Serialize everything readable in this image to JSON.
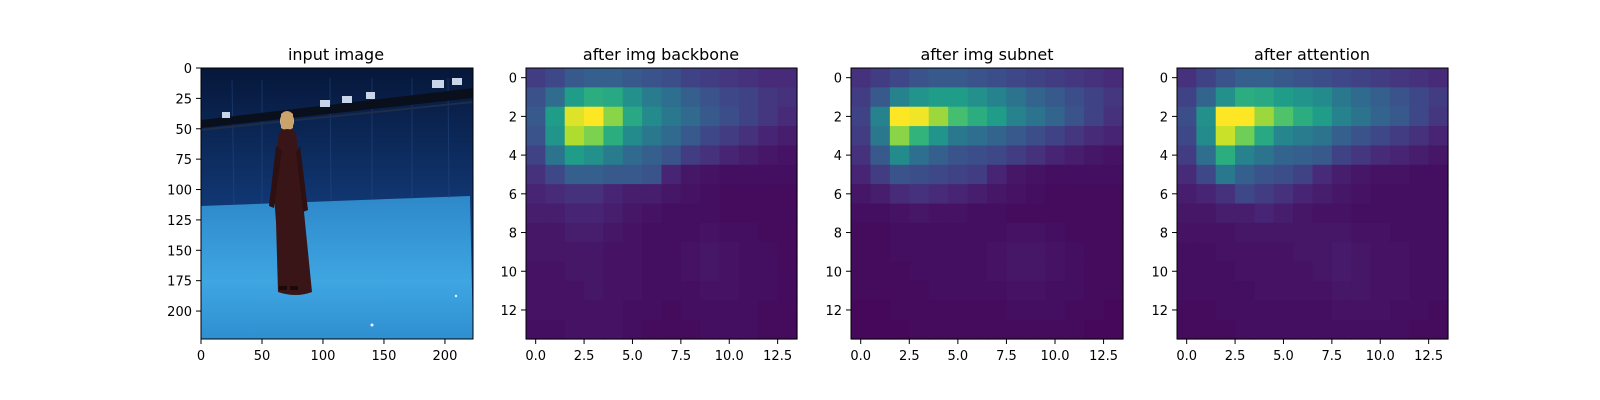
{
  "figure": {
    "panels": [
      {
        "title": "input image"
      },
      {
        "title": "after img backbone"
      },
      {
        "title": "after img subnet"
      },
      {
        "title": "after attention"
      }
    ]
  },
  "colors": {
    "viridis": [
      "#440154",
      "#482878",
      "#3e4989",
      "#31688e",
      "#26828e",
      "#1f9e89",
      "#35b779",
      "#6ece58",
      "#b5de2b",
      "#fde725"
    ],
    "photo_wall": "#0d2b5c",
    "photo_floor": "#3aa0d8",
    "photo_dress": "#3a1518"
  },
  "chart_data": [
    {
      "type": "image",
      "title": "input image",
      "xlim": [
        0,
        223
      ],
      "ylim": [
        223,
        0
      ],
      "xticks": [
        0,
        50,
        100,
        150,
        200
      ],
      "yticks": [
        0,
        25,
        50,
        75,
        100,
        125,
        150,
        175,
        200
      ]
    },
    {
      "type": "heatmap",
      "title": "after img backbone",
      "xlim": [
        -0.5,
        13.5
      ],
      "ylim": [
        13.5,
        -0.5
      ],
      "xticks": [
        "0.0",
        "2.5",
        "5.0",
        "7.5",
        "10.0",
        "12.5"
      ],
      "yticks": [
        0,
        2,
        4,
        6,
        8,
        10,
        12
      ],
      "z": [
        [
          0.18,
          0.22,
          0.28,
          0.3,
          0.3,
          0.28,
          0.26,
          0.24,
          0.2,
          0.18,
          0.16,
          0.14,
          0.12,
          0.12
        ],
        [
          0.25,
          0.35,
          0.55,
          0.62,
          0.6,
          0.5,
          0.42,
          0.36,
          0.3,
          0.26,
          0.22,
          0.2,
          0.16,
          0.14
        ],
        [
          0.28,
          0.55,
          0.95,
          1.0,
          0.82,
          0.6,
          0.48,
          0.4,
          0.34,
          0.28,
          0.24,
          0.2,
          0.16,
          0.12
        ],
        [
          0.26,
          0.52,
          0.88,
          0.8,
          0.62,
          0.48,
          0.4,
          0.34,
          0.28,
          0.22,
          0.18,
          0.14,
          0.1,
          0.08
        ],
        [
          0.2,
          0.38,
          0.55,
          0.5,
          0.42,
          0.34,
          0.3,
          0.26,
          0.18,
          0.14,
          0.1,
          0.08,
          0.06,
          0.05
        ],
        [
          0.14,
          0.22,
          0.3,
          0.3,
          0.28,
          0.28,
          0.26,
          0.1,
          0.06,
          0.05,
          0.04,
          0.04,
          0.04,
          0.04
        ],
        [
          0.1,
          0.12,
          0.14,
          0.14,
          0.1,
          0.08,
          0.08,
          0.06,
          0.05,
          0.04,
          0.03,
          0.03,
          0.03,
          0.03
        ],
        [
          0.08,
          0.08,
          0.1,
          0.1,
          0.08,
          0.06,
          0.05,
          0.04,
          0.04,
          0.04,
          0.03,
          0.03,
          0.03,
          0.03
        ],
        [
          0.06,
          0.06,
          0.08,
          0.08,
          0.06,
          0.05,
          0.04,
          0.04,
          0.04,
          0.05,
          0.04,
          0.04,
          0.03,
          0.03
        ],
        [
          0.06,
          0.06,
          0.06,
          0.06,
          0.05,
          0.05,
          0.04,
          0.04,
          0.05,
          0.06,
          0.05,
          0.04,
          0.04,
          0.03
        ],
        [
          0.05,
          0.05,
          0.06,
          0.06,
          0.05,
          0.05,
          0.04,
          0.04,
          0.05,
          0.06,
          0.05,
          0.04,
          0.04,
          0.03
        ],
        [
          0.05,
          0.05,
          0.05,
          0.06,
          0.05,
          0.05,
          0.04,
          0.04,
          0.04,
          0.05,
          0.05,
          0.04,
          0.04,
          0.03
        ],
        [
          0.05,
          0.05,
          0.05,
          0.05,
          0.05,
          0.04,
          0.04,
          0.03,
          0.04,
          0.04,
          0.04,
          0.04,
          0.03,
          0.03
        ],
        [
          0.04,
          0.04,
          0.05,
          0.05,
          0.05,
          0.04,
          0.03,
          0.03,
          0.03,
          0.04,
          0.04,
          0.04,
          0.03,
          0.03
        ]
      ]
    },
    {
      "type": "heatmap",
      "title": "after img subnet",
      "xlim": [
        -0.5,
        13.5
      ],
      "ylim": [
        13.5,
        -0.5
      ],
      "xticks": [
        "0.0",
        "2.5",
        "5.0",
        "7.5",
        "10.0",
        "12.5"
      ],
      "yticks": [
        0,
        2,
        4,
        6,
        8,
        10,
        12
      ],
      "z": [
        [
          0.14,
          0.18,
          0.22,
          0.26,
          0.28,
          0.28,
          0.26,
          0.24,
          0.22,
          0.2,
          0.18,
          0.16,
          0.14,
          0.12
        ],
        [
          0.18,
          0.28,
          0.45,
          0.52,
          0.55,
          0.55,
          0.5,
          0.45,
          0.38,
          0.32,
          0.28,
          0.24,
          0.2,
          0.16
        ],
        [
          0.2,
          0.45,
          1.0,
          0.98,
          0.85,
          0.7,
          0.62,
          0.55,
          0.45,
          0.38,
          0.32,
          0.26,
          0.2,
          0.14
        ],
        [
          0.18,
          0.4,
          0.82,
          0.65,
          0.52,
          0.4,
          0.36,
          0.32,
          0.28,
          0.24,
          0.2,
          0.16,
          0.12,
          0.1
        ],
        [
          0.14,
          0.28,
          0.48,
          0.36,
          0.3,
          0.26,
          0.24,
          0.22,
          0.18,
          0.14,
          0.1,
          0.08,
          0.06,
          0.05
        ],
        [
          0.1,
          0.18,
          0.26,
          0.24,
          0.22,
          0.2,
          0.18,
          0.1,
          0.06,
          0.05,
          0.04,
          0.04,
          0.04,
          0.04
        ],
        [
          0.06,
          0.08,
          0.12,
          0.14,
          0.12,
          0.1,
          0.08,
          0.06,
          0.05,
          0.04,
          0.03,
          0.03,
          0.03,
          0.03
        ],
        [
          0.04,
          0.04,
          0.05,
          0.06,
          0.05,
          0.05,
          0.04,
          0.04,
          0.03,
          0.03,
          0.03,
          0.03,
          0.03,
          0.03
        ],
        [
          0.03,
          0.03,
          0.04,
          0.04,
          0.04,
          0.04,
          0.04,
          0.04,
          0.05,
          0.05,
          0.04,
          0.03,
          0.03,
          0.03
        ],
        [
          0.03,
          0.03,
          0.04,
          0.04,
          0.04,
          0.04,
          0.04,
          0.05,
          0.06,
          0.06,
          0.05,
          0.04,
          0.03,
          0.03
        ],
        [
          0.03,
          0.03,
          0.03,
          0.04,
          0.04,
          0.04,
          0.04,
          0.05,
          0.06,
          0.06,
          0.05,
          0.04,
          0.03,
          0.03
        ],
        [
          0.03,
          0.03,
          0.03,
          0.03,
          0.04,
          0.04,
          0.04,
          0.04,
          0.05,
          0.05,
          0.04,
          0.04,
          0.03,
          0.03
        ],
        [
          0.02,
          0.02,
          0.03,
          0.03,
          0.03,
          0.03,
          0.03,
          0.03,
          0.04,
          0.04,
          0.04,
          0.03,
          0.03,
          0.02
        ],
        [
          0.02,
          0.02,
          0.02,
          0.03,
          0.03,
          0.03,
          0.03,
          0.03,
          0.03,
          0.03,
          0.03,
          0.03,
          0.02,
          0.02
        ]
      ]
    },
    {
      "type": "heatmap",
      "title": "after attention",
      "xlim": [
        -0.5,
        13.5
      ],
      "ylim": [
        13.5,
        -0.5
      ],
      "xticks": [
        "0.0",
        "2.5",
        "5.0",
        "7.5",
        "10.0",
        "12.5"
      ],
      "yticks": [
        0,
        2,
        4,
        6,
        8,
        10,
        12
      ],
      "z": [
        [
          0.14,
          0.2,
          0.26,
          0.3,
          0.3,
          0.28,
          0.26,
          0.24,
          0.22,
          0.2,
          0.18,
          0.16,
          0.14,
          0.12
        ],
        [
          0.2,
          0.32,
          0.5,
          0.62,
          0.6,
          0.55,
          0.52,
          0.48,
          0.4,
          0.34,
          0.3,
          0.26,
          0.22,
          0.18
        ],
        [
          0.24,
          0.5,
          1.0,
          1.0,
          0.85,
          0.72,
          0.62,
          0.55,
          0.45,
          0.38,
          0.32,
          0.28,
          0.22,
          0.16
        ],
        [
          0.22,
          0.48,
          0.92,
          0.78,
          0.6,
          0.46,
          0.42,
          0.38,
          0.3,
          0.26,
          0.22,
          0.18,
          0.14,
          0.1
        ],
        [
          0.18,
          0.36,
          0.62,
          0.45,
          0.38,
          0.32,
          0.3,
          0.28,
          0.2,
          0.16,
          0.12,
          0.1,
          0.08,
          0.06
        ],
        [
          0.12,
          0.22,
          0.4,
          0.3,
          0.26,
          0.24,
          0.2,
          0.12,
          0.08,
          0.06,
          0.05,
          0.05,
          0.04,
          0.04
        ],
        [
          0.08,
          0.1,
          0.14,
          0.22,
          0.18,
          0.14,
          0.1,
          0.08,
          0.06,
          0.05,
          0.04,
          0.04,
          0.04,
          0.04
        ],
        [
          0.06,
          0.06,
          0.08,
          0.08,
          0.1,
          0.08,
          0.06,
          0.05,
          0.05,
          0.04,
          0.04,
          0.04,
          0.04,
          0.04
        ],
        [
          0.05,
          0.05,
          0.05,
          0.06,
          0.06,
          0.06,
          0.06,
          0.06,
          0.06,
          0.05,
          0.05,
          0.04,
          0.04,
          0.04
        ],
        [
          0.04,
          0.04,
          0.05,
          0.05,
          0.05,
          0.05,
          0.06,
          0.06,
          0.07,
          0.06,
          0.05,
          0.05,
          0.04,
          0.04
        ],
        [
          0.04,
          0.04,
          0.04,
          0.05,
          0.05,
          0.05,
          0.05,
          0.06,
          0.07,
          0.06,
          0.05,
          0.05,
          0.04,
          0.04
        ],
        [
          0.04,
          0.04,
          0.04,
          0.04,
          0.05,
          0.05,
          0.05,
          0.05,
          0.06,
          0.06,
          0.05,
          0.05,
          0.04,
          0.04
        ],
        [
          0.03,
          0.03,
          0.04,
          0.04,
          0.04,
          0.04,
          0.04,
          0.04,
          0.05,
          0.05,
          0.05,
          0.04,
          0.04,
          0.03
        ],
        [
          0.03,
          0.03,
          0.03,
          0.04,
          0.04,
          0.04,
          0.04,
          0.04,
          0.04,
          0.04,
          0.04,
          0.04,
          0.03,
          0.03
        ]
      ]
    }
  ]
}
